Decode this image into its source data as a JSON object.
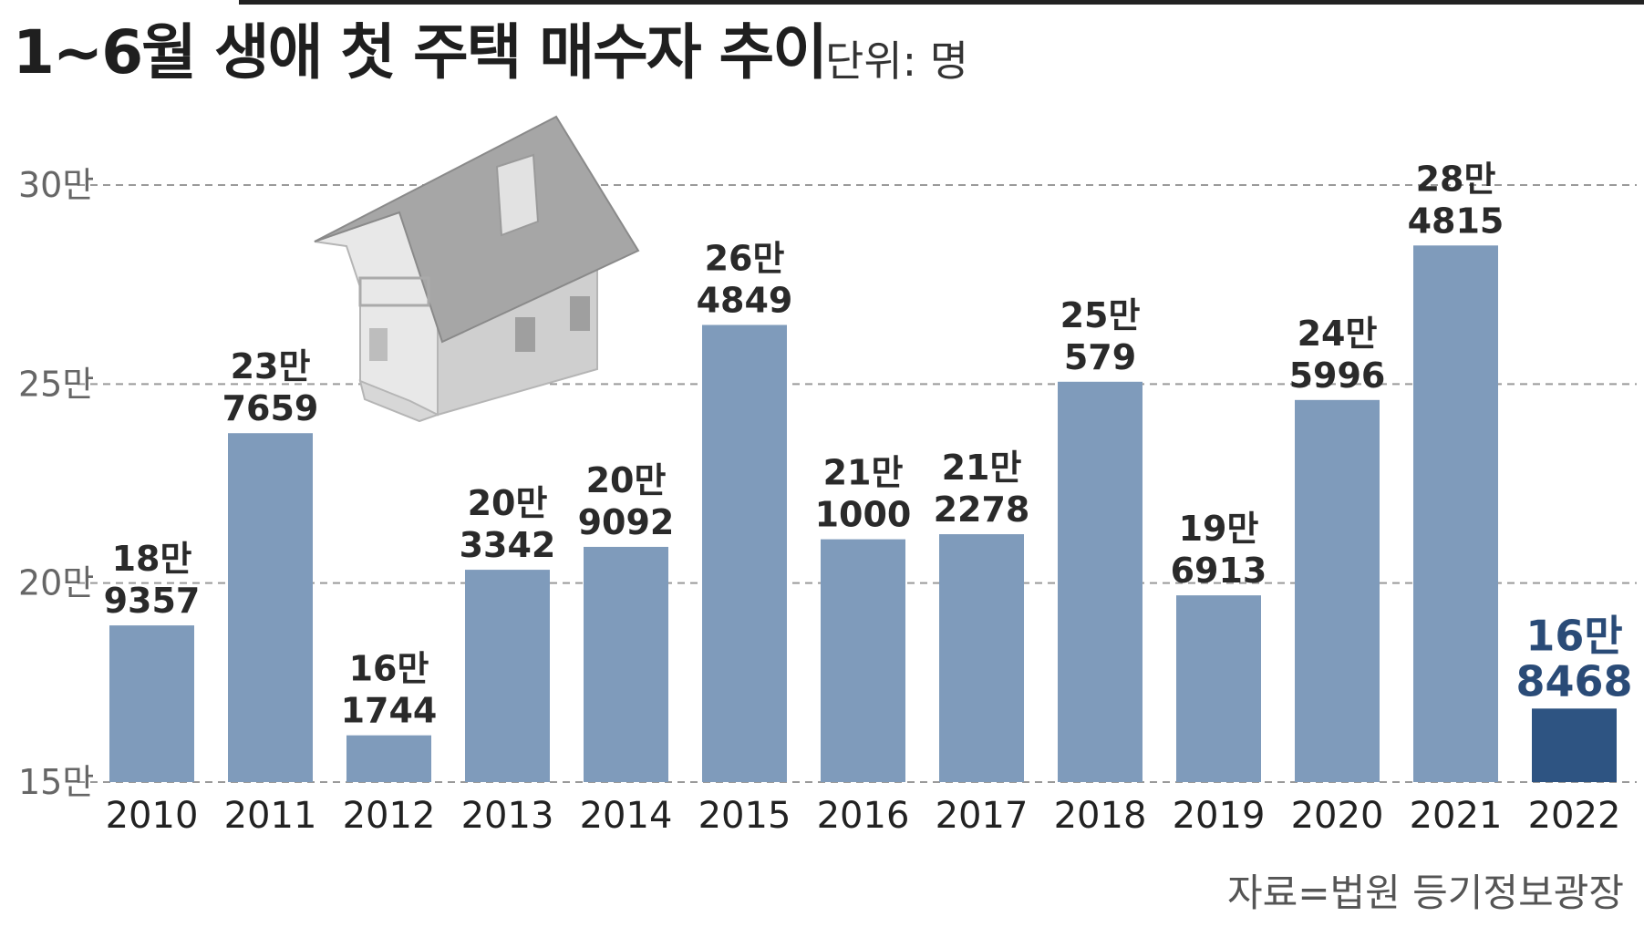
{
  "title": "1~6월 생애 첫 주택 매수자 추이",
  "unit_label": "단위: 명",
  "source": "자료=법원 등기정보광장",
  "colors": {
    "bar": "#7f9bbb",
    "bar_highlight": "#2e5482",
    "label_highlight": "#2a4b77",
    "grid": "#9a9a9a",
    "house_roof": "#9a9a9a",
    "house_wall": "#dcdcdc"
  },
  "chart_data": {
    "type": "bar",
    "title": "1~6월 생애 첫 주택 매수자 추이",
    "xlabel": "",
    "ylabel": "",
    "unit": "명",
    "categories": [
      "2010",
      "2011",
      "2012",
      "2013",
      "2014",
      "2015",
      "2016",
      "2017",
      "2018",
      "2019",
      "2020",
      "2021",
      "2022"
    ],
    "values": [
      189357,
      237659,
      161744,
      203342,
      209092,
      264849,
      211000,
      212278,
      250579,
      196913,
      245996,
      284815,
      168468
    ],
    "value_labels": [
      [
        "18만",
        "9357"
      ],
      [
        "23만",
        "7659"
      ],
      [
        "16만",
        "1744"
      ],
      [
        "20만",
        "3342"
      ],
      [
        "20만",
        "9092"
      ],
      [
        "26만",
        "4849"
      ],
      [
        "21만",
        "1000"
      ],
      [
        "21만",
        "2278"
      ],
      [
        "25만",
        "579"
      ],
      [
        "19만",
        "6913"
      ],
      [
        "24만",
        "5996"
      ],
      [
        "28만",
        "4815"
      ],
      [
        "16만",
        "8468"
      ]
    ],
    "ylim": [
      150000,
      300000
    ],
    "yticks": [
      150000,
      200000,
      250000,
      300000
    ],
    "ytick_labels": [
      "15만",
      "20만",
      "25만",
      "30만"
    ],
    "grid": true,
    "highlight_category": "2022"
  }
}
